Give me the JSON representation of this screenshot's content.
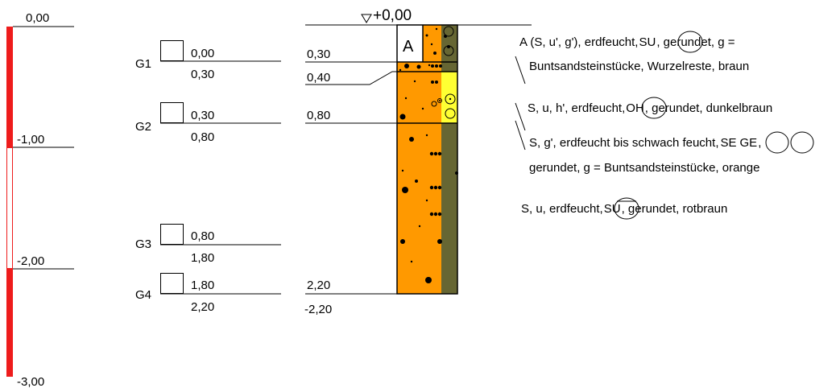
{
  "scale": {
    "labels": [
      "0,00",
      "-1,00",
      "-2,00",
      "-3,00"
    ],
    "color": "#ee1c1c"
  },
  "samples": [
    {
      "id": "G1",
      "top": "0,00",
      "bottom": "0,30"
    },
    {
      "id": "G2",
      "top": "0,30",
      "bottom": "0,80"
    },
    {
      "id": "G3",
      "top": "0,80",
      "bottom": "1,80"
    },
    {
      "id": "G4",
      "top": "1,80",
      "bottom": "2,20"
    }
  ],
  "profile": {
    "surface_label": "+0,00",
    "fill_label": "A",
    "depth_labels": [
      "0,30",
      "0,40",
      "0,80",
      "2,20"
    ],
    "end_depth": "-2,20",
    "colors": {
      "orange": "#ff9900",
      "yellow": "#ffff33",
      "olive": "#666633"
    }
  },
  "descriptions": [
    {
      "line1_a": "A (S, u', g'), erdfeucht,",
      "line1_codes": [
        "SU"
      ],
      "line1_b": ", gerundet, g =",
      "line2": "Buntsandsteinstücke, Wurzelreste, braun"
    },
    {
      "line1_a": "S, u, h', erdfeucht,",
      "line1_codes": [
        "OH"
      ],
      "line1_b": ", gerundet, dunkelbraun"
    },
    {
      "line1_a": "S, g', erdfeucht bis schwach feucht,",
      "line1_codes": [
        "SE",
        "GE"
      ],
      "line1_b": ",",
      "line2": "gerundet, g = Buntsandsteinstücke, orange"
    },
    {
      "line1_a": "S, u, erdfeucht,",
      "line1_codes": [
        "SU"
      ],
      "line1_b": ", gerundet, rotbraun"
    }
  ]
}
